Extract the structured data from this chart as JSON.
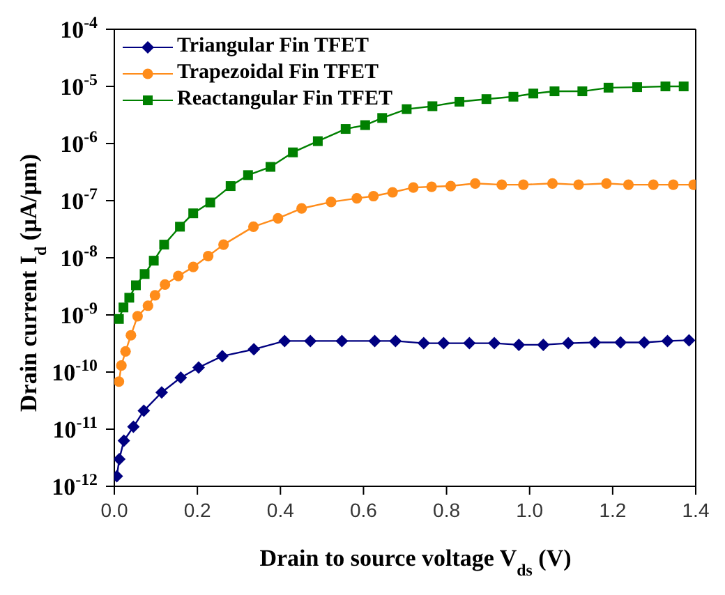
{
  "chart_data": {
    "type": "line",
    "xlabel": "Drain to source voltage V$_{ds}$ (V)",
    "ylabel": "Drain current I$_{d}$ (µA/µm)",
    "log": "y",
    "legend": "top left",
    "xlim": [
      0,
      1.4
    ],
    "ylim": [
      1e-12,
      0.0001
    ],
    "xticks": [
      {
        "value": 0,
        "label": "0.0"
      },
      {
        "value": 0.2,
        "label": "0.2"
      },
      {
        "value": 0.4,
        "label": "0.4"
      },
      {
        "value": 0.6,
        "label": "0.6"
      },
      {
        "value": 0.8,
        "label": "0.8"
      },
      {
        "value": 1,
        "label": "1.0"
      },
      {
        "value": 1.2,
        "label": "1.2"
      },
      {
        "value": 1.4,
        "label": "1.4"
      }
    ],
    "yticks": [
      {
        "value": 1e-12,
        "label": "10$^{-12}$"
      },
      {
        "value": 1e-11,
        "label": "10$^{-11}$"
      },
      {
        "value": 1e-10,
        "label": "10$^{-10}$"
      },
      {
        "value": 1e-09,
        "label": "10$^{-9}$"
      },
      {
        "value": 1e-08,
        "label": "10$^{-8}$"
      },
      {
        "value": 1e-07,
        "label": "10$^{-7}$"
      },
      {
        "value": 1e-06,
        "label": "10$^{-6}$"
      },
      {
        "value": 1e-05,
        "label": "10$^{-5}$"
      },
      {
        "value": 0.0001,
        "label": "10$^{-4}$"
      }
    ],
    "series": [
      {
        "name": "Triangular Fin TFET",
        "color": "#000080",
        "marker": "diamond",
        "x": [
          0.006,
          0.012,
          0.023,
          0.046,
          0.071,
          0.114,
          0.16,
          0.203,
          0.26,
          0.336,
          0.41,
          0.472,
          0.548,
          0.627,
          0.677,
          0.745,
          0.793,
          0.855,
          0.915,
          0.974,
          1.033,
          1.093,
          1.157,
          1.219,
          1.276,
          1.332,
          1.384
        ],
        "values": [
          1.5e-12,
          3e-12,
          6.3e-12,
          1.1e-11,
          2.1e-11,
          4.4e-11,
          8e-11,
          1.2e-10,
          1.9e-10,
          2.5e-10,
          3.5e-10,
          3.5e-10,
          3.5e-10,
          3.5e-10,
          3.5e-10,
          3.2e-10,
          3.2e-10,
          3.2e-10,
          3.2e-10,
          3e-10,
          3e-10,
          3.2e-10,
          3.3e-10,
          3.3e-10,
          3.3e-10,
          3.5e-10,
          3.6e-10
        ]
      },
      {
        "name": "Trapezoidal Fin TFET",
        "color": "#ff8c1a",
        "marker": "circle",
        "x": [
          0.011,
          0.017,
          0.027,
          0.04,
          0.056,
          0.081,
          0.098,
          0.122,
          0.154,
          0.19,
          0.226,
          0.263,
          0.335,
          0.394,
          0.451,
          0.522,
          0.584,
          0.624,
          0.67,
          0.72,
          0.764,
          0.81,
          0.869,
          0.933,
          0.985,
          1.055,
          1.118,
          1.185,
          1.238,
          1.298,
          1.346,
          1.395
        ],
        "values": [
          6.8e-11,
          1.3e-10,
          2.3e-10,
          4.4e-10,
          9.5e-10,
          1.45e-09,
          2.2e-09,
          3.4e-09,
          4.8e-09,
          6.9e-09,
          1.07e-08,
          1.7e-08,
          3.5e-08,
          4.9e-08,
          7.3e-08,
          9.5e-08,
          1.1e-07,
          1.2e-07,
          1.4e-07,
          1.7e-07,
          1.75e-07,
          1.8e-07,
          2e-07,
          1.9e-07,
          1.9e-07,
          2e-07,
          1.9e-07,
          2e-07,
          1.9e-07,
          1.9e-07,
          1.9e-07,
          1.9e-07
        ]
      },
      {
        "name": "Reactangular Fin TFET",
        "color": "#008000",
        "marker": "square",
        "x": [
          0.011,
          0.022,
          0.036,
          0.052,
          0.073,
          0.095,
          0.12,
          0.158,
          0.19,
          0.231,
          0.28,
          0.322,
          0.376,
          0.43,
          0.49,
          0.557,
          0.604,
          0.645,
          0.704,
          0.766,
          0.831,
          0.896,
          0.961,
          1.009,
          1.06,
          1.127,
          1.19,
          1.259,
          1.327,
          1.371
        ],
        "values": [
          8.5e-10,
          1.35e-09,
          2e-09,
          3.3e-09,
          5.2e-09,
          8.9e-09,
          1.7e-08,
          3.5e-08,
          6e-08,
          9.3e-08,
          1.8e-07,
          2.8e-07,
          3.9e-07,
          7e-07,
          1.1e-06,
          1.8e-06,
          2.1e-06,
          2.8e-06,
          4e-06,
          4.5e-06,
          5.4e-06,
          6e-06,
          6.6e-06,
          7.5e-06,
          8.2e-06,
          8.2e-06,
          9.5e-06,
          9.7e-06,
          1e-05,
          1e-05
        ]
      }
    ]
  }
}
